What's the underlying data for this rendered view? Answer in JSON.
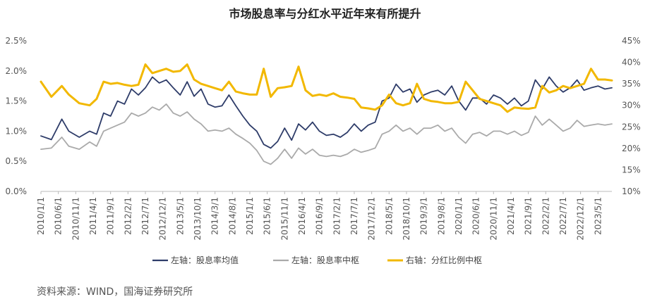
{
  "chart_data": {
    "type": "line",
    "title": "市场股息率与分红水平近年来有所提升",
    "source": "资料来源：WIND，国海证券研究所",
    "x_ticks": [
      "2010/1/1",
      "2010/6/1",
      "2010/11/1",
      "2011/4/1",
      "2011/9/1",
      "2012/2/1",
      "2012/7/1",
      "2012/12/1",
      "2013/5/1",
      "2013/10/1",
      "2014/3/1",
      "2014/8/1",
      "2015/1/1",
      "2015/6/1",
      "2015/11/1",
      "2016/4/1",
      "2016/9/1",
      "2017/2/1",
      "2017/7/1",
      "2017/12/1",
      "2018/5/1",
      "2018/10/1",
      "2019/3/1",
      "2019/8/1",
      "2020/1/1",
      "2020/6/1",
      "2020/11/1",
      "2021/4/1",
      "2021/9/1",
      "2022/2/1",
      "2022/7/1",
      "2022/12/1",
      "2023/5/1"
    ],
    "left_axis": {
      "ylim": [
        0,
        2.5
      ],
      "ticks": [
        "0.0%",
        "0.5%",
        "1.0%",
        "1.5%",
        "2.0%",
        "2.5%"
      ]
    },
    "right_axis": {
      "ylim": [
        10,
        45
      ],
      "ticks": [
        "10%",
        "15%",
        "20%",
        "25%",
        "30%",
        "35%",
        "40%",
        "45%"
      ]
    },
    "grid": false,
    "legend_position": "bottom",
    "series": [
      {
        "name": "左轴：股息率均值",
        "axis": "left",
        "color": "#2e3c69",
        "x": [
          0,
          3,
          6,
          8,
          11,
          14,
          16,
          18,
          20,
          22,
          24,
          26,
          28,
          30,
          32,
          34,
          36,
          38,
          40,
          42,
          44,
          46,
          48,
          50,
          52,
          54,
          56,
          58,
          60,
          62,
          64,
          66,
          68,
          70,
          72,
          74,
          76,
          78,
          80,
          82,
          84,
          86,
          88,
          90,
          92,
          94,
          96,
          98,
          100,
          102,
          104,
          106,
          108,
          110,
          112,
          114,
          116,
          118,
          120,
          122,
          124,
          126,
          128,
          130,
          132,
          134,
          136,
          138,
          140,
          142,
          144,
          146,
          148,
          150,
          152,
          154,
          156,
          158,
          160,
          162,
          164
        ],
        "values": [
          0.92,
          0.86,
          1.2,
          1.0,
          0.9,
          1.0,
          0.95,
          1.3,
          1.25,
          1.5,
          1.45,
          1.7,
          1.6,
          1.72,
          1.9,
          1.8,
          1.85,
          1.72,
          1.6,
          1.82,
          1.58,
          1.7,
          1.45,
          1.4,
          1.42,
          1.6,
          1.42,
          1.25,
          1.1,
          1.0,
          0.78,
          0.72,
          0.83,
          1.05,
          0.85,
          1.12,
          1.02,
          1.15,
          1.0,
          0.93,
          0.95,
          0.9,
          0.98,
          1.12,
          1.0,
          1.1,
          1.15,
          1.5,
          1.55,
          1.78,
          1.65,
          1.7,
          1.48,
          1.6,
          1.65,
          1.68,
          1.6,
          1.75,
          1.5,
          1.35,
          1.55,
          1.55,
          1.45,
          1.6,
          1.55,
          1.45,
          1.55,
          1.42,
          1.5,
          1.85,
          1.7,
          1.9,
          1.75,
          1.65,
          1.72,
          1.85,
          1.68,
          1.72,
          1.75,
          1.7,
          1.72
        ]
      },
      {
        "name": "左轴：股息率中枢",
        "axis": "left",
        "color": "#aaaaaa",
        "x": [
          0,
          3,
          6,
          8,
          11,
          14,
          16,
          18,
          20,
          22,
          24,
          26,
          28,
          30,
          32,
          34,
          36,
          38,
          40,
          42,
          44,
          46,
          48,
          50,
          52,
          54,
          56,
          58,
          60,
          62,
          64,
          66,
          68,
          70,
          72,
          74,
          76,
          78,
          80,
          82,
          84,
          86,
          88,
          90,
          92,
          94,
          96,
          98,
          100,
          102,
          104,
          106,
          108,
          110,
          112,
          114,
          116,
          118,
          120,
          122,
          124,
          126,
          128,
          130,
          132,
          134,
          136,
          138,
          140,
          142,
          144,
          146,
          148,
          150,
          152,
          154,
          156,
          158,
          160,
          162,
          164
        ],
        "values": [
          0.7,
          0.72,
          0.9,
          0.75,
          0.7,
          0.82,
          0.75,
          1.0,
          1.05,
          1.1,
          1.15,
          1.3,
          1.25,
          1.3,
          1.4,
          1.35,
          1.45,
          1.3,
          1.25,
          1.32,
          1.2,
          1.12,
          1.0,
          1.02,
          1.0,
          1.05,
          0.95,
          0.88,
          0.8,
          0.68,
          0.5,
          0.45,
          0.55,
          0.7,
          0.55,
          0.72,
          0.62,
          0.7,
          0.6,
          0.58,
          0.6,
          0.58,
          0.62,
          0.7,
          0.65,
          0.68,
          0.72,
          0.95,
          1.0,
          1.1,
          1.0,
          1.05,
          0.95,
          1.05,
          1.05,
          1.1,
          1.0,
          1.05,
          0.9,
          0.8,
          0.95,
          0.98,
          0.92,
          1.0,
          1.0,
          0.95,
          1.0,
          0.93,
          0.98,
          1.25,
          1.1,
          1.2,
          1.1,
          1.0,
          1.05,
          1.18,
          1.08,
          1.1,
          1.12,
          1.1,
          1.12
        ]
      },
      {
        "name": "右轴：分红比例中枢",
        "axis": "right",
        "color": "#f2b800",
        "x": [
          0,
          3,
          6,
          8,
          11,
          14,
          16,
          18,
          20,
          22,
          24,
          26,
          28,
          30,
          32,
          34,
          36,
          38,
          40,
          42,
          44,
          46,
          48,
          50,
          52,
          54,
          56,
          58,
          60,
          62,
          64,
          66,
          68,
          70,
          72,
          74,
          76,
          78,
          80,
          82,
          84,
          86,
          88,
          90,
          92,
          94,
          96,
          98,
          100,
          102,
          104,
          106,
          108,
          110,
          112,
          114,
          116,
          118,
          120,
          122,
          124,
          126,
          128,
          130,
          132,
          134,
          136,
          138,
          140,
          142,
          144,
          146,
          148,
          150,
          152,
          154,
          156,
          158,
          160,
          162,
          164
        ],
        "values": [
          35.5,
          32.0,
          34.5,
          32.5,
          30.5,
          30.0,
          31.5,
          35.5,
          35.0,
          35.2,
          34.8,
          34.5,
          34.8,
          39.5,
          37.5,
          38.0,
          38.5,
          37.8,
          38.0,
          39.5,
          36.0,
          35.0,
          34.5,
          34.0,
          33.5,
          35.5,
          33.2,
          32.8,
          32.5,
          32.5,
          38.5,
          32.0,
          34.0,
          34.2,
          34.5,
          39.0,
          33.5,
          32.2,
          32.5,
          32.2,
          32.8,
          32.0,
          31.8,
          31.5,
          29.5,
          29.3,
          29.0,
          30.0,
          32.5,
          30.5,
          30.0,
          30.5,
          35.0,
          31.5,
          31.0,
          30.8,
          30.5,
          30.5,
          30.8,
          35.5,
          33.5,
          31.5,
          31.0,
          30.5,
          30.0,
          28.5,
          29.5,
          29.3,
          29.2,
          29.5,
          34.5,
          33.0,
          33.5,
          34.5,
          34.0,
          34.5,
          35.0,
          38.5,
          36.0,
          36.0,
          35.8
        ]
      }
    ]
  }
}
